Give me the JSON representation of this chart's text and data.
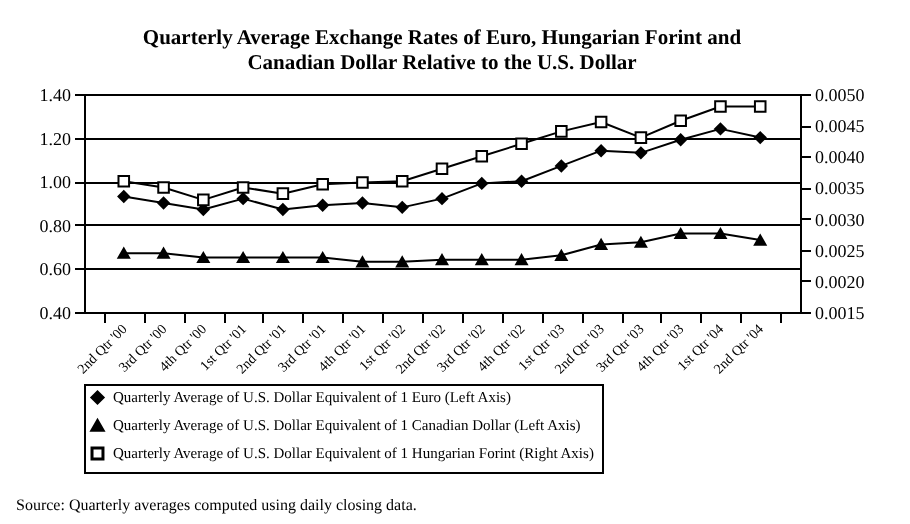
{
  "chart_data": {
    "type": "line",
    "title": "Quarterly Average Exchange Rates of Euro, Hungarian Forint and Canadian Dollar Relative to the U.S. Dollar",
    "categories": [
      "2nd Qtr '00",
      "3rd Qtr '00",
      "4th Qtr '00",
      "1st Qtr '01",
      "2nd Qtr '01",
      "3rd Qtr '01",
      "4th Qtr '01",
      "1st Qtr '02",
      "2nd Qtr '02",
      "3rd Qtr '02",
      "4th Qtr '02",
      "1st Qtr '03",
      "2nd Qtr '03",
      "3rd Qtr '03",
      "4th Qtr '03",
      "1st Qtr '04",
      "2nd Qtr '04"
    ],
    "series": [
      {
        "name": "Quarterly Average of U.S. Dollar Equivalent of 1 Euro (Left Axis)",
        "color": "#000000",
        "marker": "diamond",
        "values": [
          0.93,
          0.9,
          0.87,
          0.92,
          0.87,
          0.89,
          0.9,
          0.88,
          0.92,
          0.99,
          1.0,
          1.07,
          1.14,
          1.13,
          1.19,
          1.24,
          1.2
        ]
      },
      {
        "name": "Quarterly Average of U.S. Dollar Equivalent of 1 Canadian Dollar (Left Axis)",
        "color": "#000000",
        "marker": "triangle",
        "values": [
          0.67,
          0.67,
          0.65,
          0.65,
          0.65,
          0.65,
          0.63,
          0.63,
          0.64,
          0.64,
          0.64,
          0.66,
          0.71,
          0.72,
          0.76,
          0.76,
          0.73
        ]
      },
      {
        "name": "Quarterly Average of U.S. Dollar Equivalent of 1 Hungarian Forint (Right Axis)",
        "color": "#000000",
        "marker": "square",
        "axis": "y2",
        "values": [
          0.0036,
          0.0035,
          0.0033,
          0.0035,
          0.0034,
          0.00355,
          0.00358,
          0.0036,
          0.0038,
          0.004,
          0.0042,
          0.0044,
          0.00455,
          0.0043,
          0.00457,
          0.0048,
          0.0048
        ]
      }
    ],
    "ylim": [
      0.4,
      1.4
    ],
    "yticks": [
      {
        "value": 0.4,
        "label": "0.40"
      },
      {
        "value": 0.6,
        "label": "0.60"
      },
      {
        "value": 0.8,
        "label": "0.80"
      },
      {
        "value": 1.0,
        "label": "1.00"
      },
      {
        "value": 1.2,
        "label": "1.20"
      },
      {
        "value": 1.4,
        "label": "1.40"
      }
    ],
    "y2lim": [
      0.0015,
      0.005
    ],
    "y2ticks": [
      {
        "value": 0.0015,
        "label": "0.0015"
      },
      {
        "value": 0.002,
        "label": "0.0020"
      },
      {
        "value": 0.0025,
        "label": "0.0025"
      },
      {
        "value": 0.003,
        "label": "0.0030"
      },
      {
        "value": 0.0035,
        "label": "0.0035"
      },
      {
        "value": 0.004,
        "label": "0.0040"
      },
      {
        "value": 0.0045,
        "label": "0.0045"
      },
      {
        "value": 0.005,
        "label": "0.0050"
      }
    ],
    "grid": "y",
    "legend": "bottom",
    "line_style": "solid",
    "annotations": [
      "Source:  Quarterly averages computed using daily closing data."
    ]
  }
}
